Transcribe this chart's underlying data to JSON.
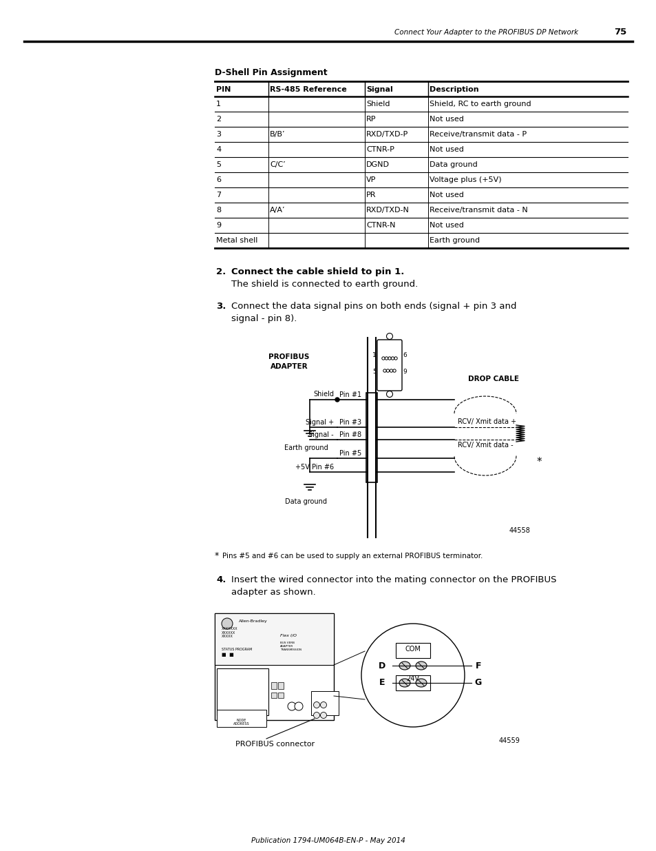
{
  "page_header_text": "Connect Your Adapter to the PROFIBUS DP Network",
  "page_number": "75",
  "table_title": "D-Shell Pin Assignment",
  "table_headers": [
    "PIN",
    "RS-485 Reference",
    "Signal",
    "Description"
  ],
  "table_rows": [
    [
      "1",
      "",
      "Shield",
      "Shield, RC to earth ground"
    ],
    [
      "2",
      "",
      "RP",
      "Not used"
    ],
    [
      "3",
      "B/B’",
      "RXD/TXD-P",
      "Receive/transmit data - P"
    ],
    [
      "4",
      "",
      "CTNR-P",
      "Not used"
    ],
    [
      "5",
      "C/C’",
      "DGND",
      "Data ground"
    ],
    [
      "6",
      "",
      "VP",
      "Voltage plus (+5V)"
    ],
    [
      "7",
      "",
      "PR",
      "Not used"
    ],
    [
      "8",
      "A/A’",
      "RXD/TXD-N",
      "Receive/transmit data - N"
    ],
    [
      "9",
      "",
      "CTNR-N",
      "Not used"
    ],
    [
      "Metal shell",
      "",
      "",
      "Earth ground"
    ]
  ],
  "step2_bold": "Connect the cable shield to pin 1.",
  "step2_normal": "The shield is connected to earth ground.",
  "step3_line1": "Connect the data signal pins on both ends (signal + pin 3 and",
  "step3_line2": "signal - pin 8).",
  "footnote_text": "Pins #5 and #6 can be used to supply an external PROFIBUS terminator.",
  "step4_line1": "Insert the wired connector into the mating connector on the PROFIBUS",
  "step4_line2": "adapter as shown.",
  "footer_text": "Publication 1794-UM064B-EN-P - May 2014",
  "diagram_number_1": "44558",
  "diagram_number_2": "44559",
  "connector_label": "PROFIBUS connector",
  "bg_color": "#ffffff",
  "text_color": "#000000"
}
